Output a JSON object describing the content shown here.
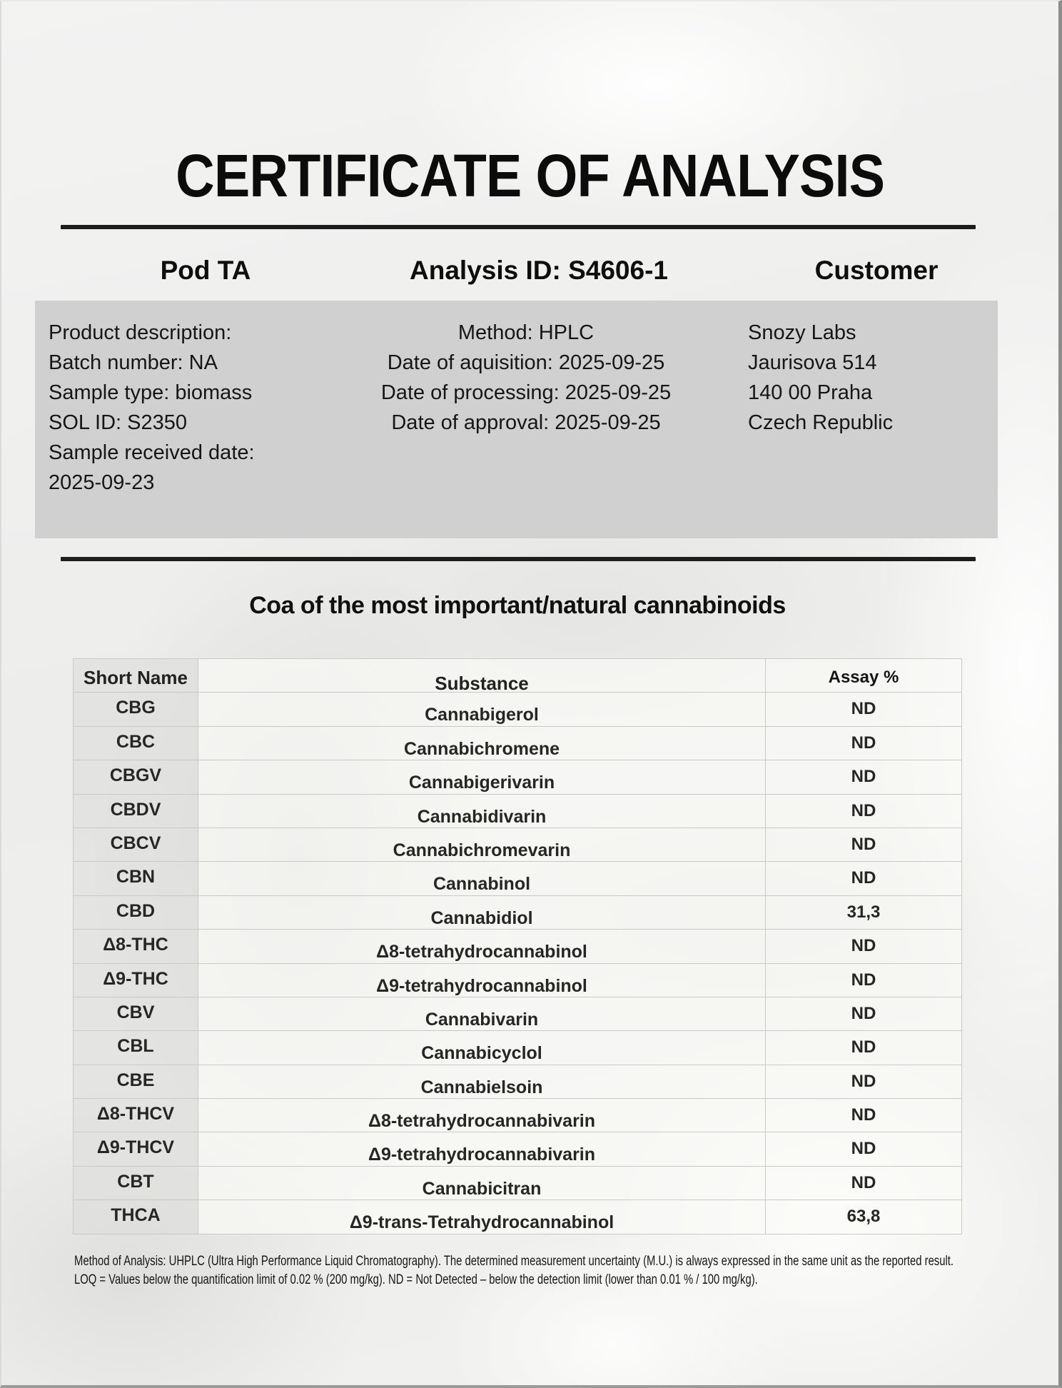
{
  "title": "CERTIFICATE OF ANALYSIS",
  "header": {
    "product": "Pod TA",
    "analysis_id": "Analysis ID: S4606-1",
    "customer": "Customer"
  },
  "info_box": {
    "sample_lines": [
      "Product description:",
      "Batch number: NA",
      "Sample type: biomass",
      "SOL ID: S2350",
      "Sample received date:",
      "2025-09-23"
    ],
    "method_lines": [
      "Method: HPLC",
      "Date of aquisition: 2025-09-25",
      "Date of processing: 2025-09-25",
      "Date of approval: 2025-09-25"
    ],
    "customer_lines": [
      "Snozy Labs",
      "Jaurisova 514",
      "140 00 Praha",
      "Czech Republic"
    ]
  },
  "section_title": "Coa of the most important/natural cannabinoids",
  "table": {
    "columns": [
      "Short Name",
      "Substance",
      "Assay %"
    ],
    "rows": [
      {
        "short": "CBG",
        "substance": "Cannabigerol",
        "assay": "ND"
      },
      {
        "short": "CBC",
        "substance": "Cannabichromene",
        "assay": "ND"
      },
      {
        "short": "CBGV",
        "substance": "Cannabigerivarin",
        "assay": "ND"
      },
      {
        "short": "CBDV",
        "substance": "Cannabidivarin",
        "assay": "ND"
      },
      {
        "short": "CBCV",
        "substance": "Cannabichromevarin",
        "assay": "ND"
      },
      {
        "short": "CBN",
        "substance": "Cannabinol",
        "assay": "ND"
      },
      {
        "short": "CBD",
        "substance": "Cannabidiol",
        "assay": "31,3"
      },
      {
        "short": "Δ8-THC",
        "substance": "Δ8-tetrahydrocannabinol",
        "assay": "ND"
      },
      {
        "short": "Δ9-THC",
        "substance": "Δ9-tetrahydrocannabinol",
        "assay": "ND"
      },
      {
        "short": "CBV",
        "substance": "Cannabivarin",
        "assay": "ND"
      },
      {
        "short": "CBL",
        "substance": "Cannabicyclol",
        "assay": "ND"
      },
      {
        "short": "CBE",
        "substance": "Cannabielsoin",
        "assay": "ND"
      },
      {
        "short": "Δ8-THCV",
        "substance": "Δ8-tetrahydrocannabivarin",
        "assay": "ND"
      },
      {
        "short": "Δ9-THCV",
        "substance": "Δ9-tetrahydrocannabivarin",
        "assay": "ND"
      },
      {
        "short": "CBT",
        "substance": "Cannabicitran",
        "assay": "ND"
      },
      {
        "short": "THCA",
        "substance": "Δ9-trans-Tetrahydrocannabinol",
        "assay": "63,8"
      }
    ]
  },
  "footnote_lines": [
    "Method of Analysis: UHPLC (Ultra High Performance Liquid Chromatography). The determined measurement uncertainty (M.U.) is always expressed in the same unit as the reported result.",
    "LOQ = Values below the quantification limit of 0.02 % (200 mg/kg). ND = Not Detected – below the detection limit (lower than 0.01 % / 100 mg/kg)."
  ],
  "colors": {
    "info_box_bg": "#d0d0d0",
    "rule": "#1d1d1d",
    "table_border": "#c9c9c7"
  }
}
